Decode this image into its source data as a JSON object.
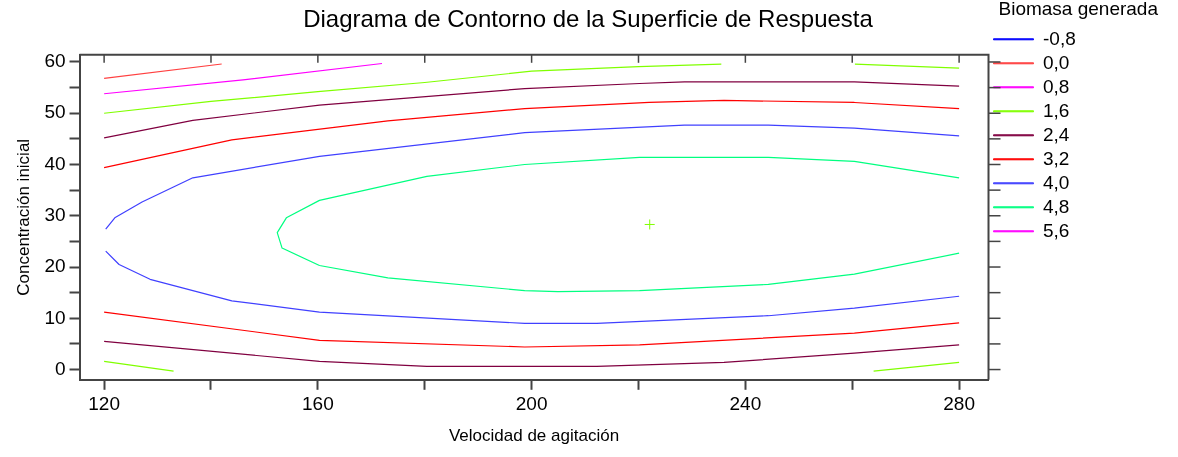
{
  "chart_data": {
    "type": "line",
    "title": "Diagrama de Contorno de la Superficie de Respuesta",
    "xlabel": "Velocidad de agitación",
    "ylabel": "Concentración inicial",
    "legend_title": "Biomasa generada",
    "legend": "right",
    "grid": false,
    "marker": "none",
    "xlim": [
      115.4,
      285.5
    ],
    "xticks": [
      120,
      {
        "value": 140,
        "label": null
      },
      160,
      {
        "value": 180,
        "label": null
      },
      200,
      {
        "value": 220,
        "label": null
      },
      240,
      {
        "value": 260,
        "label": null
      },
      280
    ],
    "ylim": [
      -2,
      61.4
    ],
    "yticks": [
      0,
      {
        "value": 5,
        "label": null
      },
      10,
      {
        "value": 15,
        "label": null
      },
      20,
      {
        "value": 25,
        "label": null
      },
      30,
      {
        "value": 35,
        "label": null
      },
      40,
      {
        "value": 45,
        "label": null
      },
      50,
      {
        "value": 55,
        "label": null
      },
      60
    ],
    "series": [
      {
        "name": "-0,8",
        "color": "#0000ff"
      },
      {
        "name": "0,0",
        "color": "#ff4040",
        "x": [
          120,
          142
        ],
        "values": [
          56.8,
          59.6
        ]
      },
      {
        "name": "0,8",
        "color": "#ff00ff",
        "x": [
          120,
          146,
          172
        ],
        "values": [
          53.8,
          56.5,
          59.7
        ]
      },
      {
        "name": "1,6",
        "color": "#80ff00",
        "x": [
          120,
          140,
          160,
          180,
          200,
          220,
          235.5,
          null,
          260.5,
          280,
          null,
          120,
          133,
          null,
          264,
          280
        ],
        "values": [
          50.0,
          52.3,
          54.2,
          56.0,
          58.2,
          59.1,
          59.6,
          null,
          59.6,
          58.8,
          null,
          1.6,
          -0.3,
          null,
          -0.3,
          1.4
        ]
      },
      {
        "name": "2,4",
        "color": "#800040",
        "x": [
          120,
          136.6,
          160.3,
          198.7,
          220.2,
          228.6,
          260.4,
          280,
          null,
          120,
          160.3,
          180.4,
          212.2,
          236,
          260.4,
          280
        ],
        "values": [
          45.2,
          48.6,
          51.6,
          54.8,
          55.8,
          56.1,
          56.1,
          55.3,
          null,
          5.5,
          1.6,
          0.6,
          0.6,
          1.4,
          3.2,
          4.8
        ]
      },
      {
        "name": "3,2",
        "color": "#ff0000",
        "x": [
          120,
          143.9,
          173.1,
          198.7,
          222,
          236,
          260.4,
          280,
          null,
          120,
          160.3,
          198.7,
          220.2,
          260.4,
          280
        ],
        "values": [
          39.4,
          44.8,
          48.5,
          50.9,
          52.1,
          52.5,
          52.1,
          50.9,
          null,
          11.2,
          5.7,
          4.4,
          4.8,
          7.1,
          9.1
        ]
      },
      {
        "name": "4,0",
        "color": "#4040ff",
        "x": [
          280,
          260.4,
          244.3,
          228.6,
          198.7,
          160.3,
          136.6,
          127.1,
          122,
          120.3,
          null,
          120.3,
          122.8,
          128.6,
          143.9,
          160.3,
          198.7,
          212.2,
          244.3,
          260.4,
          280
        ],
        "values": [
          45.6,
          47.1,
          47.7,
          47.7,
          46.2,
          41.6,
          37.4,
          32.7,
          29.6,
          27.4,
          null,
          23.1,
          20.5,
          17.6,
          13.4,
          11.2,
          9.0,
          9.0,
          10.5,
          12.0,
          14.3
        ]
      },
      {
        "name": "4,8",
        "color": "#00ff80",
        "x": [
          280,
          260.4,
          244.3,
          220.2,
          198.7,
          180.4,
          160.3,
          154.1,
          152.4,
          153.3,
          160.3,
          173.1,
          198.7,
          204.9,
          220.2,
          244.3,
          260.4,
          280
        ],
        "values": [
          37.4,
          40.6,
          41.4,
          41.4,
          40.0,
          37.7,
          33.0,
          29.6,
          26.7,
          23.7,
          20.3,
          17.9,
          15.4,
          15.2,
          15.4,
          16.6,
          18.6,
          22.7
        ]
      },
      {
        "name": "5,6",
        "color": "#ff00ff"
      },
      {
        "type": "scatter",
        "marker": "cross",
        "color": "#80ff00",
        "x": [
          222.1
        ],
        "values": [
          28.3
        ]
      }
    ]
  }
}
